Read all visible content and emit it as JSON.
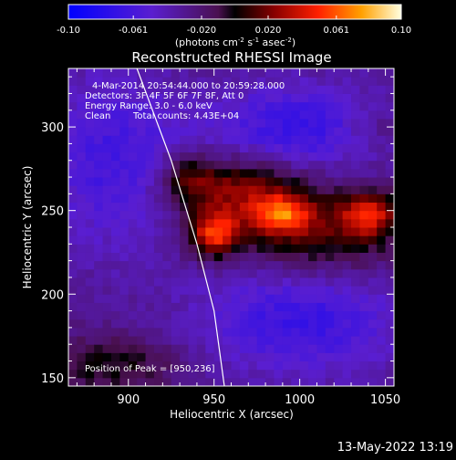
{
  "chart_data": {
    "type": "heatmap",
    "title": "Reconstructed RHESSI Image",
    "xlabel": "Heliocentric X (arcsec)",
    "ylabel": "Heliocentric Y (arcsec)",
    "xlim": [
      865,
      1055
    ],
    "ylim": [
      145,
      335
    ],
    "xticks": [
      900,
      950,
      1000,
      1050
    ],
    "yticks": [
      150,
      200,
      250,
      300
    ],
    "colorbar": {
      "range": [
        -0.1,
        0.1
      ],
      "ticks": [
        -0.1,
        -0.061,
        -0.02,
        0.02,
        0.061,
        0.1
      ],
      "tick_labels": [
        "-0.10",
        "-0.061",
        "-0.020",
        "0.020",
        "0.061",
        "0.10"
      ],
      "units_label_main": "(photons cm",
      "units_label_exp1": "-2",
      "units_label_mid1": " s",
      "units_label_exp2": "-1",
      "units_label_mid2": " asec",
      "units_label_exp3": "-2",
      "units_label_end": ")"
    },
    "annotations": {
      "time": "4-Mar-2014 20:54:44.000 to 20:59:28.000",
      "detectors": "Detectors: 3F 4F 5F 6F 7F 8F, Att 0",
      "energy": "Energy Range: 3.0 - 6.0 keV",
      "method": "Clean",
      "counts": "Total counts: 4.43E+04",
      "peak_label": "Position of Peak = [950,236]"
    },
    "peak": [
      950,
      236
    ],
    "sources": [
      {
        "x": 950,
        "y": 236,
        "sx": 10,
        "sy": 9,
        "amp": 0.075
      },
      {
        "x": 990,
        "y": 248,
        "sx": 11,
        "sy": 8,
        "amp": 0.055
      },
      {
        "x": 1040,
        "y": 248,
        "sx": 11,
        "sy": 9,
        "amp": 0.055
      },
      {
        "x": 965,
        "y": 262,
        "sx": 25,
        "sy": 14,
        "amp": 0.05
      },
      {
        "x": 1010,
        "y": 238,
        "sx": 35,
        "sy": 18,
        "amp": 0.045
      },
      {
        "x": 935,
        "y": 270,
        "sx": 12,
        "sy": 10,
        "amp": 0.035
      },
      {
        "x": 890,
        "y": 158,
        "sx": 28,
        "sy": 12,
        "amp": 0.03
      },
      {
        "x": 1045,
        "y": 300,
        "sx": 15,
        "sy": 10,
        "amp": 0.015
      },
      {
        "x": 1000,
        "y": 185,
        "sx": 45,
        "sy": 25,
        "amp": -0.04
      },
      {
        "x": 890,
        "y": 280,
        "sx": 30,
        "sy": 40,
        "amp": -0.035
      },
      {
        "x": 1000,
        "y": 300,
        "sx": 40,
        "sy": 20,
        "amp": -0.04
      }
    ],
    "baseline": -0.028,
    "limb_curve": [
      [
        905,
        335
      ],
      [
        925,
        280
      ],
      [
        940,
        230
      ],
      [
        950,
        190
      ],
      [
        956,
        145
      ]
    ]
  },
  "footer": {
    "date": "13-May-2022 13:19"
  },
  "colors": {
    "background": "#000000",
    "limb": "#ffffff"
  }
}
